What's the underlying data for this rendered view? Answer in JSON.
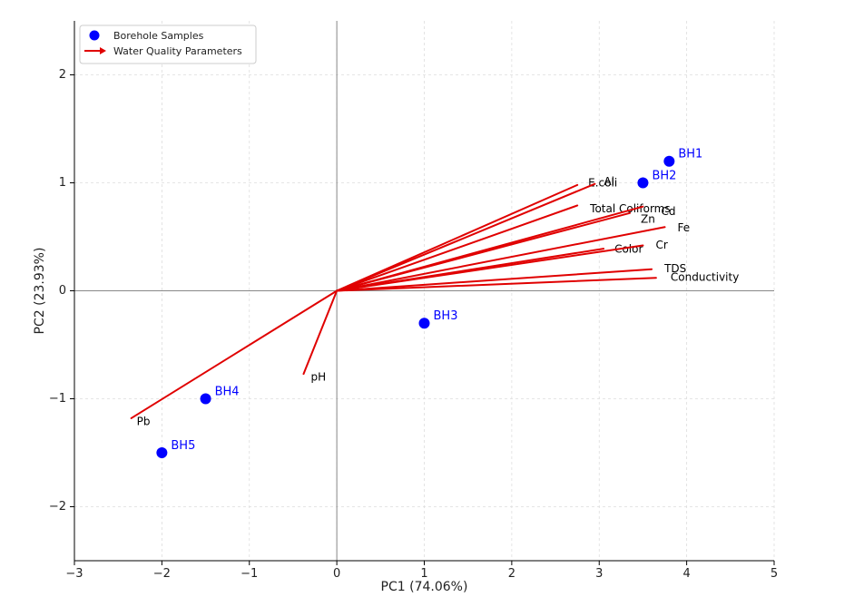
{
  "chart_data": {
    "type": "scatter",
    "subtype": "pca-biplot",
    "xlabel": "PC1 (74.06%)",
    "ylabel": "PC2 (23.93%)",
    "xlim": [
      -3,
      5
    ],
    "ylim": [
      -2.5,
      2.5
    ],
    "xticks": [
      -3,
      -2,
      -1,
      0,
      1,
      2,
      3,
      4,
      5
    ],
    "yticks": [
      -2,
      -1,
      0,
      1,
      2
    ],
    "xtick_labels": [
      "−3",
      "−2",
      "−1",
      "0",
      "1",
      "2",
      "3",
      "4",
      "5"
    ],
    "ytick_labels": [
      "−2",
      "−1",
      "0",
      "1",
      "2"
    ],
    "grid": true,
    "legend": {
      "placement": "top-left",
      "entries": [
        {
          "label": "Borehole Samples",
          "marker": "circle",
          "color": "#0000ff"
        },
        {
          "label": "Water Quality Parameters",
          "marker": "arrow",
          "color": "#e00000"
        }
      ]
    },
    "series": [
      {
        "name": "Borehole Samples",
        "color": "#0000ff",
        "points": [
          {
            "label": "BH1",
            "x": 3.8,
            "y": 1.2
          },
          {
            "label": "BH2",
            "x": 3.5,
            "y": 1.0
          },
          {
            "label": "BH3",
            "x": 1.0,
            "y": -0.3
          },
          {
            "label": "BH4",
            "x": -1.5,
            "y": -1.0
          },
          {
            "label": "BH5",
            "x": -2.0,
            "y": -1.5
          }
        ]
      },
      {
        "name": "Water Quality Parameters",
        "color": "#e00000",
        "vectors": [
          {
            "label": "E.coli",
            "x": 2.75,
            "y": 0.98
          },
          {
            "label": "Al",
            "x": 2.95,
            "y": 0.99
          },
          {
            "label": "Total Coliforms",
            "x": 2.75,
            "y": 0.79
          },
          {
            "label": "Cd",
            "x": 3.5,
            "y": 0.78
          },
          {
            "label": "Zn",
            "x": 3.35,
            "y": 0.72
          },
          {
            "label": "Fe",
            "x": 3.75,
            "y": 0.59
          },
          {
            "label": "Color",
            "x": 3.05,
            "y": 0.39
          },
          {
            "label": "Cr",
            "x": 3.5,
            "y": 0.42
          },
          {
            "label": "TDS",
            "x": 3.6,
            "y": 0.2
          },
          {
            "label": "Conductivity",
            "x": 3.65,
            "y": 0.12
          },
          {
            "label": "pH",
            "x": -0.38,
            "y": -0.77
          },
          {
            "label": "Pb",
            "x": -2.35,
            "y": -1.18
          }
        ]
      }
    ]
  }
}
